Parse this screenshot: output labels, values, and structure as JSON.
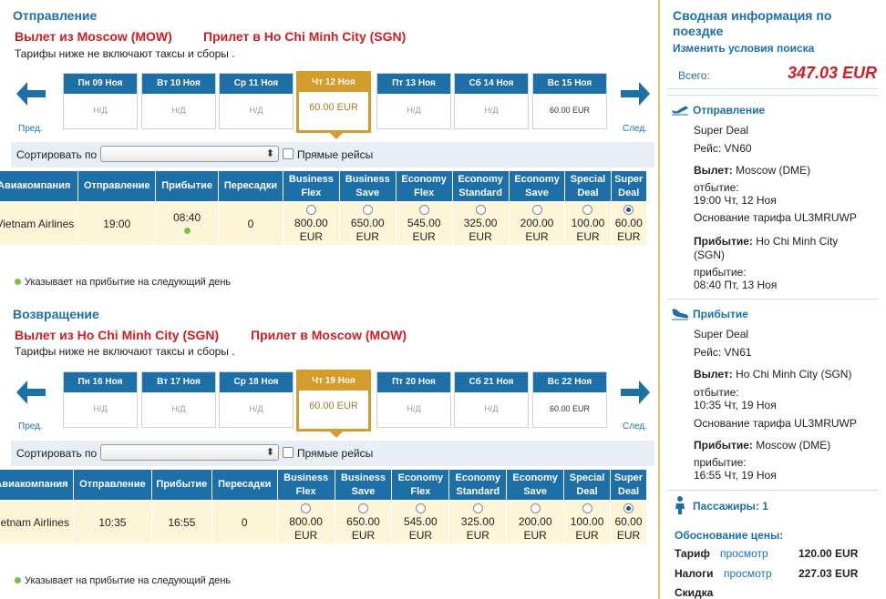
{
  "outbound": {
    "heading": "Отправление",
    "from": "Вылет из Moscow (MOW)",
    "to": "Прилет в Ho Chi Minh City (SGN)",
    "note": "Тарифы ниже не включают таксы и сборы .",
    "prev": "Пред.",
    "next": "След.",
    "days": [
      {
        "label": "Пн 09 Ноя",
        "value": "Н/Д"
      },
      {
        "label": "Вт 10 Ноя",
        "value": "Н/Д"
      },
      {
        "label": "Ср 11 Ноя",
        "value": "Н/Д"
      },
      {
        "label": "Чт 12 Ноя",
        "value": "60.00 EUR"
      },
      {
        "label": "Пт 13 Ноя",
        "value": "Н/Д"
      },
      {
        "label": "Сб 14 Ноя",
        "value": "Н/Д"
      },
      {
        "label": "Вс 15 Ноя",
        "value": "60.00 EUR"
      }
    ],
    "sort_label": "Сортировать по",
    "direct_label": "Прямые рейсы",
    "headers": [
      "Авиакомпания",
      "Отправление",
      "Прибытие",
      "Пересадки",
      "Business Flex",
      "Business Save",
      "Economy Flex",
      "Economy Standard",
      "Economy Save",
      "Special Deal",
      "Super Deal"
    ],
    "row": {
      "airline": "Vietnam Airlines",
      "depart": "19:00",
      "arrive": "08:40",
      "stops": "0",
      "prices": [
        "800.00",
        "650.00",
        "545.00",
        "325.00",
        "200.00",
        "100.00",
        "60.00"
      ],
      "currency": "EUR"
    },
    "legend": "Указывает на прибытие на следующий день"
  },
  "inbound": {
    "heading": "Возвращение",
    "from": "Вылет из Ho Chi Minh City (SGN)",
    "to": "Прилет в Moscow (MOW)",
    "note": "Тарифы ниже не включают таксы и сборы .",
    "prev": "Пред.",
    "next": "След.",
    "days": [
      {
        "label": "Пн 16 Ноя",
        "value": "Н/Д"
      },
      {
        "label": "Вт 17 Ноя",
        "value": "Н/Д"
      },
      {
        "label": "Ср 18 Ноя",
        "value": "Н/Д"
      },
      {
        "label": "Чт 19 Ноя",
        "value": "60.00 EUR"
      },
      {
        "label": "Пт 20 Ноя",
        "value": "Н/Д"
      },
      {
        "label": "Сб 21 Ноя",
        "value": "Н/Д"
      },
      {
        "label": "Вс 22 Ноя",
        "value": "60.00 EUR"
      }
    ],
    "sort_label": "Сортировать по",
    "direct_label": "Прямые рейсы",
    "headers": [
      "Авиакомпания",
      "Отправление",
      "Прибытие",
      "Пересадки",
      "Business Flex",
      "Business Save",
      "Economy Flex",
      "Economy Standard",
      "Economy Save",
      "Special Deal",
      "Super Deal"
    ],
    "row": {
      "airline": "Vietnam Airlines",
      "depart": "10:35",
      "arrive": "16:55",
      "stops": "0",
      "prices": [
        "800.00",
        "650.00",
        "545.00",
        "325.00",
        "200.00",
        "100.00",
        "60.00"
      ],
      "currency": "EUR"
    },
    "legend": "Указывает на прибытие на следующий день"
  },
  "summary": {
    "title": "Сводная информация по поездке",
    "modify": "Изменить условия поиска",
    "total_label": "Всего:",
    "total_value": "347.03 EUR",
    "departure": {
      "heading": "Отправление",
      "fare": "Super Deal",
      "flight": "Рейс: VN60",
      "dep_label": "Вылет:",
      "dep_value": " Moscow (DME)",
      "dep_time_label": "отбытие:",
      "dep_time": "19:00 Чт, 12 Ноя",
      "basis": "Основание тарифа UL3MRUWP",
      "arr_label": "Прибытие:",
      "arr_value": " Ho Chi Minh City",
      "arr_value2": "(SGN)",
      "arr_time_label": "прибытие:",
      "arr_time": "08:40 Пт, 13 Ноя"
    },
    "arrival": {
      "heading": "Прибытие",
      "fare": "Super Deal",
      "flight": "Рейс: VN61",
      "dep_label": "Вылет:",
      "dep_value": " Ho Chi Minh City (SGN)",
      "dep_time_label": "отбытие:",
      "dep_time": "10:35 Чт, 19 Ноя",
      "basis": "Основание тарифа UL3MRUWP",
      "arr_label": "Прибытие:",
      "arr_value": " Moscow (DME)",
      "arr_time_label": "прибытие:",
      "arr_time": "16:55 Чт, 19 Ноя"
    },
    "passengers": "Пассажиры: 1",
    "price_basis": "Обоснование цены:",
    "fare_label": "Тариф",
    "fare_link": "просмотр",
    "fare_value": "120.00 EUR",
    "tax_label": "Налоги",
    "tax_link": "просмотр",
    "tax_value": "227.03 EUR",
    "discount_label": "Скидка"
  },
  "colors": {
    "accent": "#1d6fa8",
    "selected": "#d39c2b",
    "route": "#d21c24",
    "row_bg": "#fdf5d8"
  }
}
